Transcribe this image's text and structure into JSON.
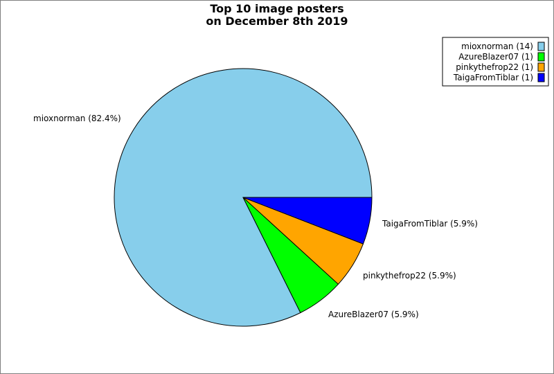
{
  "chart_data": {
    "type": "pie",
    "title_lines": [
      "Top 10 image posters",
      "on December 8th 2019"
    ],
    "slices": [
      {
        "name": "mioxnorman",
        "value": 14,
        "percent_label": "mioxnorman (82.4%)",
        "legend_label": "mioxnorman (14)",
        "color": "#87ceeb"
      },
      {
        "name": "AzureBlazer07",
        "value": 1,
        "percent_label": "AzureBlazer07 (5.9%)",
        "legend_label": "AzureBlazer07 (1)",
        "color": "#00ff00"
      },
      {
        "name": "pinkythefrop22",
        "value": 1,
        "percent_label": "pinkythefrop22 (5.9%)",
        "legend_label": "pinkythefrop22 (1)",
        "color": "#ffa500"
      },
      {
        "name": "TaigaFromTiblar",
        "value": 1,
        "percent_label": "TaigaFromTiblar (5.9%)",
        "legend_label": "TaigaFromTiblar (1)",
        "color": "#0000ff"
      }
    ],
    "legend_position": "top-right"
  }
}
